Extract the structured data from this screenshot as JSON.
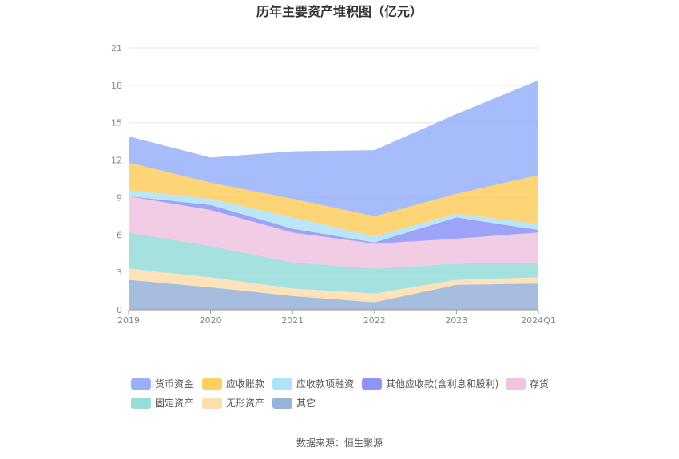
{
  "chart_data": {
    "type": "area",
    "stacked": true,
    "title": "历年主要资产堆积图（亿元）",
    "categories": [
      "2019",
      "2020",
      "2021",
      "2022",
      "2023",
      "2024Q1"
    ],
    "ylim": [
      0,
      21
    ],
    "yticks": [
      "0",
      "3",
      "6",
      "9",
      "12",
      "15",
      "18",
      "21"
    ],
    "grid": true,
    "legend_position": "bottom",
    "series": [
      {
        "name": "其它",
        "color": "#8eaad6",
        "values": [
          2.4,
          1.8,
          1.1,
          0.6,
          2.0,
          2.1
        ]
      },
      {
        "name": "无形资产",
        "color": "#fddaa6",
        "values": [
          0.9,
          0.8,
          0.6,
          0.7,
          0.4,
          0.5
        ]
      },
      {
        "name": "固定资产",
        "color": "#8bd9d6",
        "values": [
          2.9,
          2.5,
          2.1,
          2.0,
          1.3,
          1.2
        ]
      },
      {
        "name": "存货",
        "color": "#eebcdc",
        "values": [
          2.9,
          2.9,
          2.4,
          2.0,
          2.0,
          2.4
        ]
      },
      {
        "name": "其他应收款(含利息和股利)",
        "color": "#8289f3",
        "values": [
          0.0,
          0.4,
          0.3,
          0.1,
          1.7,
          0.2
        ]
      },
      {
        "name": "应收款项融资",
        "color": "#a6dff6",
        "values": [
          0.5,
          0.5,
          0.9,
          0.5,
          0.3,
          0.5
        ]
      },
      {
        "name": "应收账款",
        "color": "#fec94f",
        "values": [
          2.2,
          1.3,
          1.5,
          1.6,
          1.6,
          3.9
        ]
      },
      {
        "name": "货币资金",
        "color": "#8ea9f9",
        "values": [
          2.1,
          2.0,
          3.8,
          5.3,
          6.4,
          7.6
        ]
      }
    ],
    "legend_order": [
      "货币资金",
      "应收账款",
      "应收款项融资",
      "其他应收款(含利息和股利)",
      "存货",
      "固定资产",
      "无形资产",
      "其它"
    ]
  },
  "source_label": "数据来源：恒生聚源"
}
